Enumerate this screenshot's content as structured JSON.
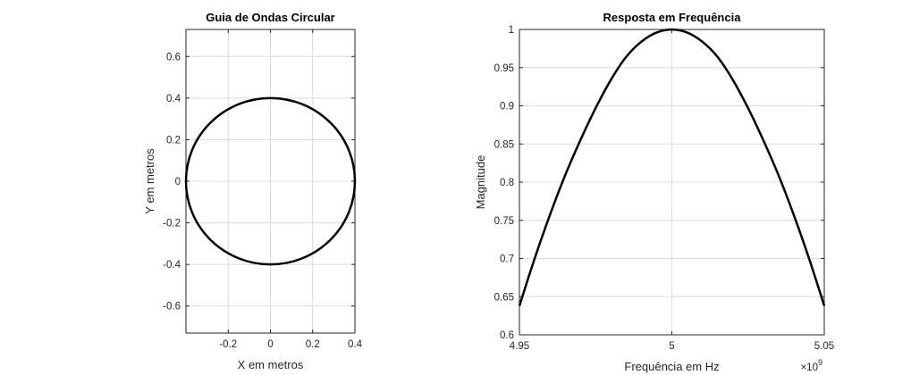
{
  "chart_data": [
    {
      "type": "line",
      "title": "Guia de Ondas Circular",
      "xlabel": "X em metros",
      "ylabel": "Y em metros",
      "xlim": [
        -0.4,
        0.4
      ],
      "ylim": [
        -0.73,
        0.73
      ],
      "xticks": [
        -0.2,
        0,
        0.2,
        0.4
      ],
      "xtick_labels": [
        "-0.2",
        "0",
        "0.2",
        "0.4"
      ],
      "yticks": [
        -0.6,
        -0.4,
        -0.2,
        0,
        0.2,
        0.4,
        0.6
      ],
      "ytick_labels": [
        "-0.6",
        "-0.4",
        "-0.2",
        "0",
        "0.2",
        "0.4",
        "0.6"
      ],
      "grid": true,
      "series": [
        {
          "shape": "circle",
          "center": [
            0,
            0
          ],
          "radius": 0.4,
          "color": "#000000"
        }
      ]
    },
    {
      "type": "line",
      "title": "Resposta em Frequência",
      "xlabel": "Frequência em Hz",
      "ylabel": "Magnitude",
      "x_exponent_base": "×10",
      "x_exponent": "9",
      "xlim": [
        4.95,
        5.05
      ],
      "ylim": [
        0.6,
        1.0
      ],
      "xticks": [
        4.95,
        5,
        5.05
      ],
      "xtick_labels": [
        "4.95",
        "5",
        "5.05"
      ],
      "yticks": [
        0.6,
        0.65,
        0.7,
        0.75,
        0.8,
        0.85,
        0.9,
        0.95,
        1.0
      ],
      "ytick_labels": [
        "0.6",
        "0.65",
        "0.7",
        "0.75",
        "0.8",
        "0.85",
        "0.9",
        "0.95",
        "1"
      ],
      "grid": true,
      "series": [
        {
          "x": [
            4.95,
            4.955,
            4.96,
            4.965,
            4.97,
            4.975,
            4.98,
            4.985,
            4.99,
            4.995,
            5.0,
            5.005,
            5.01,
            5.015,
            5.02,
            5.025,
            5.03,
            5.035,
            5.04,
            5.045,
            5.05
          ],
          "y": [
            0.638,
            0.7,
            0.757,
            0.809,
            0.855,
            0.897,
            0.934,
            0.964,
            0.984,
            0.996,
            1.0,
            0.996,
            0.984,
            0.964,
            0.934,
            0.897,
            0.855,
            0.809,
            0.757,
            0.7,
            0.638
          ],
          "color": "#000000"
        }
      ]
    }
  ]
}
